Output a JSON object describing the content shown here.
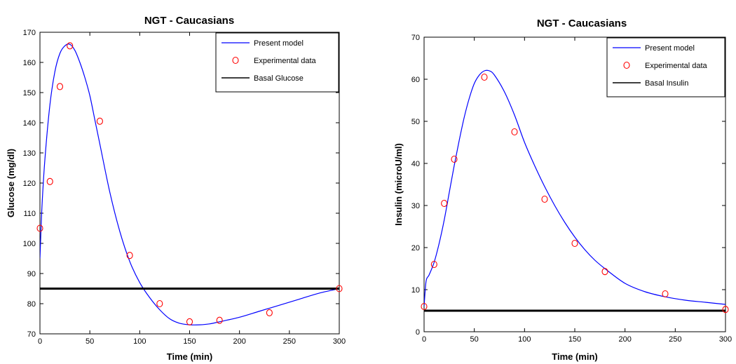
{
  "chart_data": [
    {
      "type": "line",
      "title": "NGT - Caucasians",
      "xlabel": "Time (min)",
      "ylabel": "Glucose (mg/dl)",
      "xlim": [
        0,
        300
      ],
      "ylim": [
        70,
        170
      ],
      "xticks": [
        0,
        50,
        100,
        150,
        200,
        250,
        300
      ],
      "yticks": [
        70,
        80,
        90,
        100,
        110,
        120,
        130,
        140,
        150,
        160,
        170
      ],
      "legend_position": "top-right",
      "colors": {
        "model": "#0000ff",
        "experimental": "#ff0000",
        "basal": "#000000"
      },
      "series": [
        {
          "name": "Present model",
          "kind": "line",
          "x": [
            0,
            2,
            5,
            10,
            15,
            20,
            25,
            30,
            35,
            40,
            45,
            50,
            55,
            60,
            70,
            80,
            90,
            100,
            110,
            120,
            130,
            140,
            150,
            160,
            170,
            180,
            200,
            220,
            240,
            260,
            280,
            300
          ],
          "y": [
            95,
            112,
            128,
            146,
            157,
            163,
            165.5,
            166,
            164,
            160,
            155,
            149,
            141,
            133,
            117,
            104,
            94,
            87,
            82,
            78,
            75,
            73.5,
            73,
            73,
            73.3,
            74,
            75.5,
            77.5,
            79.5,
            81.5,
            83.5,
            85
          ]
        },
        {
          "name": "Experimental data",
          "kind": "scatter",
          "x": [
            0,
            10,
            20,
            30,
            60,
            90,
            120,
            150,
            180,
            230,
            300
          ],
          "y": [
            105,
            120.5,
            152,
            165.5,
            140.5,
            96,
            80,
            74,
            74.5,
            77,
            85
          ]
        },
        {
          "name": "Basal Glucose",
          "kind": "hline",
          "y": 85
        }
      ]
    },
    {
      "type": "line",
      "title": "NGT - Caucasians",
      "xlabel": "Time (min)",
      "ylabel": "Insulin (microU/ml)",
      "xlim": [
        0,
        300
      ],
      "ylim": [
        0,
        70
      ],
      "xticks": [
        0,
        50,
        100,
        150,
        200,
        250,
        300
      ],
      "yticks": [
        0,
        10,
        20,
        30,
        40,
        50,
        60,
        70
      ],
      "legend_position": "top-right",
      "colors": {
        "model": "#0000ff",
        "experimental": "#ff0000",
        "basal": "#000000"
      },
      "series": [
        {
          "name": "Present model",
          "kind": "line",
          "x": [
            0,
            2,
            5,
            10,
            15,
            20,
            25,
            30,
            35,
            40,
            45,
            50,
            55,
            60,
            65,
            70,
            80,
            90,
            100,
            110,
            120,
            130,
            140,
            150,
            160,
            170,
            180,
            200,
            220,
            240,
            260,
            280,
            300
          ],
          "y": [
            6,
            12,
            13.5,
            16.5,
            21,
            26.5,
            33,
            39.5,
            45.5,
            51,
            55.5,
            59,
            61,
            62,
            62,
            61,
            57,
            51.5,
            45,
            39.5,
            34.5,
            30,
            26,
            22.5,
            19.5,
            17,
            15,
            11.5,
            9.5,
            8.3,
            7.5,
            7,
            6.5
          ]
        },
        {
          "name": "Experimental data",
          "kind": "scatter",
          "x": [
            0,
            10,
            20,
            30,
            60,
            90,
            120,
            150,
            180,
            240,
            300
          ],
          "y": [
            6,
            16,
            30.5,
            41,
            60.5,
            47.5,
            31.5,
            21,
            14.3,
            9,
            5.3
          ]
        },
        {
          "name": "Basal Insulin",
          "kind": "hline",
          "y": 5
        }
      ]
    }
  ]
}
